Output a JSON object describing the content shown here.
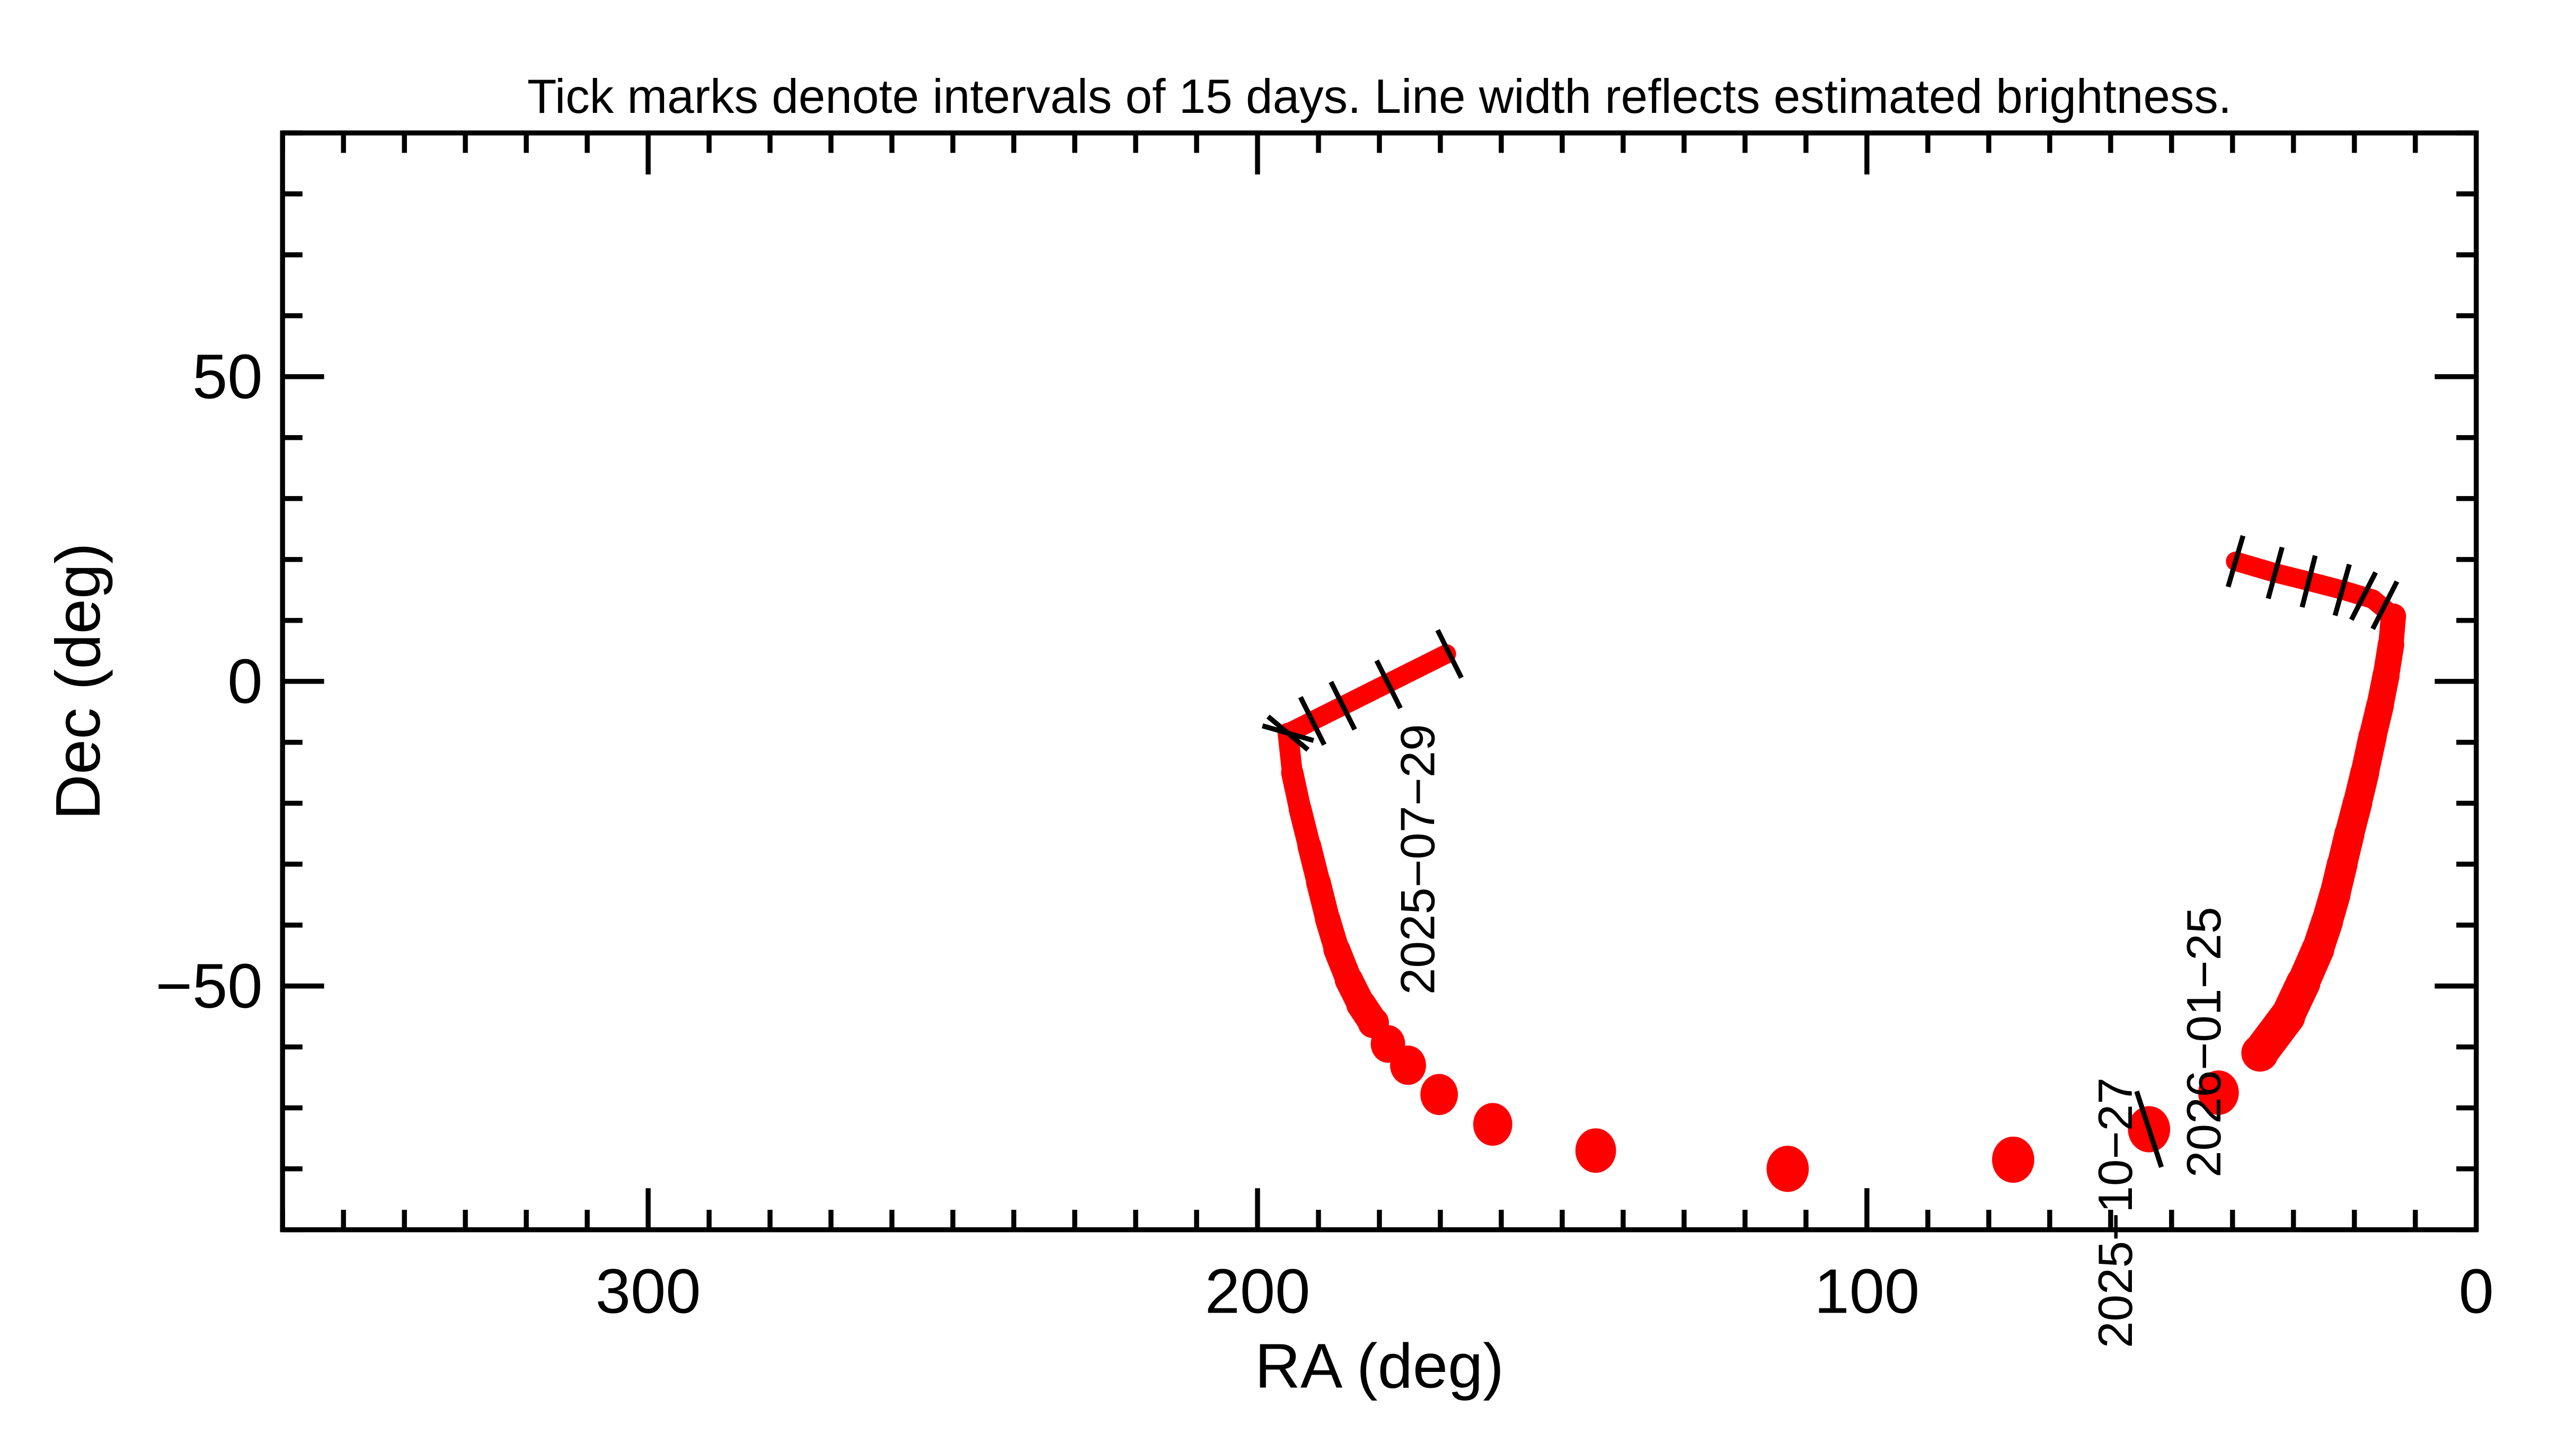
{
  "chart_data": {
    "type": "line",
    "title": "Tick marks denote intervals of 15 days.  Line width reflects estimated brightness.",
    "xlabel": "RA (deg)",
    "ylabel": "Dec (deg)",
    "xlim": [
      360,
      0
    ],
    "ylim": [
      -90,
      90
    ],
    "x_ticks": [
      300,
      200,
      100,
      0
    ],
    "x_tick_labels": [
      "300",
      "200",
      "100",
      "0"
    ],
    "y_ticks": [
      50,
      0,
      -50
    ],
    "y_tick_labels": [
      "50",
      "0",
      "−50"
    ],
    "grid": false,
    "track_color": "#ff0000",
    "tick_color": "#000000",
    "point_fields": [
      "ra_deg",
      "dec_deg",
      "relative_brightness"
    ],
    "track_segments": [
      [
        [
          169,
          4.5,
          0.2
        ],
        [
          175,
          1.5,
          0.2
        ],
        [
          181,
          -1.5,
          0.2
        ],
        [
          187,
          -4.5,
          0.2
        ],
        [
          192,
          -7,
          0.2
        ],
        [
          195,
          -8.5,
          0.25
        ],
        [
          194.3,
          -15,
          0.3
        ],
        [
          193,
          -21,
          0.32
        ],
        [
          191.5,
          -27,
          0.35
        ],
        [
          190,
          -33,
          0.38
        ],
        [
          188.5,
          -39,
          0.4
        ],
        [
          187,
          -44,
          0.45
        ],
        [
          185,
          -49,
          0.5
        ],
        [
          183,
          -53,
          0.55
        ],
        [
          181,
          -56,
          0.6
        ]
      ],
      [
        [
          35.5,
          -61,
          0.8
        ],
        [
          31,
          -55,
          0.75
        ],
        [
          28.4,
          -49.5,
          0.7
        ],
        [
          26,
          -44,
          0.65
        ],
        [
          24.5,
          -39.5,
          0.62
        ],
        [
          23.2,
          -35,
          0.6
        ],
        [
          22,
          -30,
          0.58
        ],
        [
          20.8,
          -25,
          0.56
        ],
        [
          19.5,
          -20,
          0.54
        ],
        [
          18.3,
          -15,
          0.52
        ],
        [
          17,
          -9,
          0.5
        ],
        [
          15.8,
          -4,
          0.48
        ],
        [
          14.8,
          1,
          0.46
        ],
        [
          14,
          6,
          0.44
        ],
        [
          13.6,
          10.7,
          0.4
        ],
        [
          17,
          13.5,
          0.2
        ],
        [
          22,
          15,
          0.2
        ],
        [
          27,
          16.3,
          0.2
        ],
        [
          33,
          17.8,
          0.2
        ],
        [
          39.5,
          19.7,
          0.2
        ]
      ]
    ],
    "track_points": [
      [
        178.6,
        -59.5,
        0.65
      ],
      [
        175.3,
        -63,
        0.7
      ],
      [
        170.2,
        -67.8,
        0.75
      ],
      [
        161.4,
        -72.7,
        0.8
      ],
      [
        144.5,
        -77,
        0.85
      ],
      [
        113,
        -80,
        0.9
      ],
      [
        76,
        -78.5,
        0.9
      ],
      [
        53.7,
        -73.5,
        0.9
      ],
      [
        42.3,
        -67.5,
        0.85
      ]
    ],
    "tick_marks": [
      {
        "ra": 168.5,
        "dec": 4.5,
        "long": false
      },
      {
        "ra": 178.5,
        "dec": -0.5,
        "long": false
      },
      {
        "ra": 186,
        "dec": -4,
        "long": false
      },
      {
        "ra": 191,
        "dec": -6.5,
        "long": false
      },
      {
        "ra": 195,
        "dec": -8.5,
        "long": false
      },
      {
        "ra": 53.7,
        "dec": -73.5,
        "long": true
      },
      {
        "ra": 39.5,
        "dec": 19.7,
        "long": false
      },
      {
        "ra": 33,
        "dec": 17.8,
        "long": false
      },
      {
        "ra": 27.5,
        "dec": 16.4,
        "long": false
      },
      {
        "ra": 22,
        "dec": 15,
        "long": false
      },
      {
        "ra": 18.5,
        "dec": 14,
        "long": false
      },
      {
        "ra": 15,
        "dec": 12.5,
        "long": false
      }
    ],
    "date_labels": [
      {
        "text": "2025−07−29",
        "ra": 171,
        "dec": -7
      },
      {
        "text": "2025−10−27",
        "ra": 56.5,
        "dec": -65
      },
      {
        "text": "2026−01−25",
        "ra": 42,
        "dec": -37
      }
    ]
  }
}
